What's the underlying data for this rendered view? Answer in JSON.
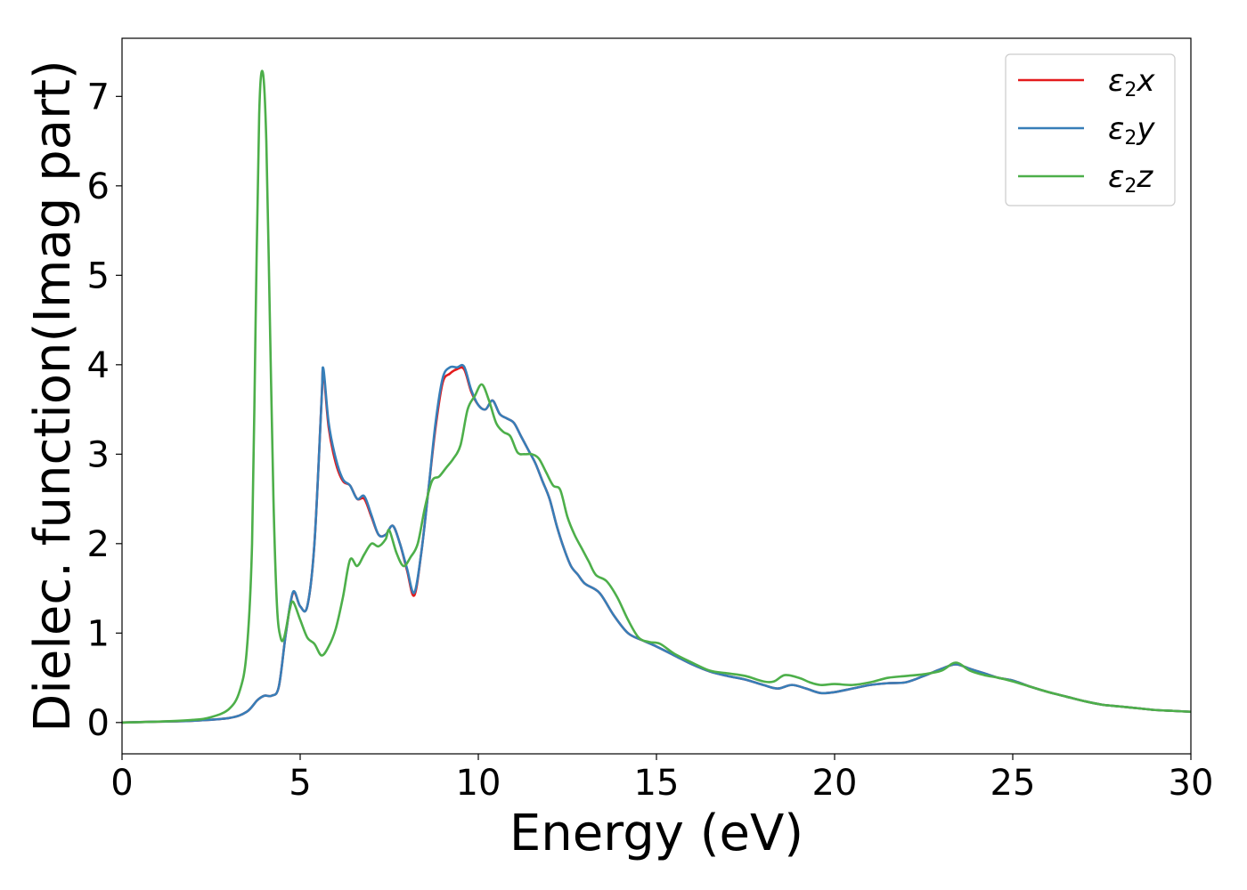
{
  "chart_data": {
    "type": "line",
    "title": "",
    "xlabel": "Energy (eV)",
    "ylabel": "Dielec. function(Imag part)",
    "xlim": [
      0,
      30
    ],
    "ylim": [
      -0.35,
      7.65
    ],
    "xticks": [
      0,
      5,
      10,
      15,
      20,
      25,
      30
    ],
    "yticks": [
      0,
      1,
      2,
      3,
      4,
      5,
      6,
      7
    ],
    "grid": false,
    "legend_position": "top-right",
    "series": [
      {
        "name": "ε2x",
        "legend": {
          "base": "ε",
          "sub": "2",
          "tail": "x"
        },
        "color": "#e41a1c",
        "points": [
          [
            0,
            0.0
          ],
          [
            1,
            0.01
          ],
          [
            2,
            0.02
          ],
          [
            3,
            0.05
          ],
          [
            3.5,
            0.12
          ],
          [
            3.8,
            0.25
          ],
          [
            4.0,
            0.3
          ],
          [
            4.2,
            0.3
          ],
          [
            4.4,
            0.4
          ],
          [
            4.6,
            1.0
          ],
          [
            4.8,
            1.45
          ],
          [
            5.0,
            1.3
          ],
          [
            5.2,
            1.3
          ],
          [
            5.4,
            2.0
          ],
          [
            5.6,
            3.6
          ],
          [
            5.65,
            3.93
          ],
          [
            5.8,
            3.3
          ],
          [
            6.0,
            2.9
          ],
          [
            6.2,
            2.7
          ],
          [
            6.4,
            2.65
          ],
          [
            6.6,
            2.5
          ],
          [
            6.8,
            2.5
          ],
          [
            7.0,
            2.3
          ],
          [
            7.2,
            2.1
          ],
          [
            7.4,
            2.1
          ],
          [
            7.6,
            2.2
          ],
          [
            7.8,
            2.0
          ],
          [
            8.0,
            1.7
          ],
          [
            8.2,
            1.42
          ],
          [
            8.4,
            1.9
          ],
          [
            8.6,
            2.6
          ],
          [
            8.8,
            3.3
          ],
          [
            9.0,
            3.8
          ],
          [
            9.2,
            3.9
          ],
          [
            9.4,
            3.95
          ],
          [
            9.6,
            3.95
          ],
          [
            9.8,
            3.7
          ],
          [
            10.0,
            3.55
          ],
          [
            10.2,
            3.5
          ],
          [
            10.4,
            3.6
          ],
          [
            10.6,
            3.45
          ],
          [
            10.8,
            3.4
          ],
          [
            11.0,
            3.35
          ],
          [
            11.2,
            3.2
          ],
          [
            11.4,
            3.05
          ],
          [
            11.6,
            2.9
          ],
          [
            11.8,
            2.7
          ],
          [
            12.0,
            2.5
          ],
          [
            12.2,
            2.2
          ],
          [
            12.4,
            1.95
          ],
          [
            12.6,
            1.75
          ],
          [
            12.8,
            1.65
          ],
          [
            13.0,
            1.55
          ],
          [
            13.4,
            1.45
          ],
          [
            13.8,
            1.2
          ],
          [
            14.2,
            1.0
          ],
          [
            14.6,
            0.92
          ],
          [
            15.0,
            0.85
          ],
          [
            15.5,
            0.75
          ],
          [
            16.0,
            0.65
          ],
          [
            16.5,
            0.57
          ],
          [
            17.0,
            0.52
          ],
          [
            17.5,
            0.48
          ],
          [
            18.0,
            0.42
          ],
          [
            18.4,
            0.38
          ],
          [
            18.8,
            0.42
          ],
          [
            19.2,
            0.38
          ],
          [
            19.6,
            0.33
          ],
          [
            20.0,
            0.34
          ],
          [
            20.5,
            0.38
          ],
          [
            21.0,
            0.42
          ],
          [
            21.5,
            0.44
          ],
          [
            22.0,
            0.45
          ],
          [
            22.5,
            0.52
          ],
          [
            23.0,
            0.6
          ],
          [
            23.4,
            0.65
          ],
          [
            23.8,
            0.6
          ],
          [
            24.2,
            0.55
          ],
          [
            24.6,
            0.5
          ],
          [
            25.0,
            0.47
          ],
          [
            25.5,
            0.4
          ],
          [
            26.0,
            0.34
          ],
          [
            26.5,
            0.29
          ],
          [
            27.0,
            0.24
          ],
          [
            27.5,
            0.2
          ],
          [
            28.0,
            0.18
          ],
          [
            28.5,
            0.16
          ],
          [
            29.0,
            0.14
          ],
          [
            29.5,
            0.13
          ],
          [
            30.0,
            0.12
          ]
        ]
      },
      {
        "name": "ε2y",
        "legend": {
          "base": "ε",
          "sub": "2",
          "tail": "y"
        },
        "color": "#377eb8",
        "points": [
          [
            0,
            0.0
          ],
          [
            1,
            0.01
          ],
          [
            2,
            0.02
          ],
          [
            3,
            0.05
          ],
          [
            3.5,
            0.12
          ],
          [
            3.8,
            0.25
          ],
          [
            4.0,
            0.3
          ],
          [
            4.2,
            0.3
          ],
          [
            4.4,
            0.4
          ],
          [
            4.6,
            1.0
          ],
          [
            4.8,
            1.46
          ],
          [
            5.0,
            1.3
          ],
          [
            5.2,
            1.3
          ],
          [
            5.4,
            2.0
          ],
          [
            5.6,
            3.6
          ],
          [
            5.65,
            3.96
          ],
          [
            5.8,
            3.35
          ],
          [
            6.0,
            2.95
          ],
          [
            6.2,
            2.72
          ],
          [
            6.4,
            2.65
          ],
          [
            6.6,
            2.5
          ],
          [
            6.8,
            2.53
          ],
          [
            7.0,
            2.32
          ],
          [
            7.2,
            2.1
          ],
          [
            7.4,
            2.1
          ],
          [
            7.6,
            2.2
          ],
          [
            7.8,
            2.0
          ],
          [
            8.0,
            1.72
          ],
          [
            8.2,
            1.45
          ],
          [
            8.4,
            1.9
          ],
          [
            8.6,
            2.6
          ],
          [
            8.8,
            3.35
          ],
          [
            9.0,
            3.85
          ],
          [
            9.2,
            3.97
          ],
          [
            9.4,
            3.97
          ],
          [
            9.6,
            3.98
          ],
          [
            9.8,
            3.72
          ],
          [
            10.0,
            3.55
          ],
          [
            10.2,
            3.5
          ],
          [
            10.4,
            3.6
          ],
          [
            10.6,
            3.45
          ],
          [
            10.8,
            3.4
          ],
          [
            11.0,
            3.35
          ],
          [
            11.2,
            3.2
          ],
          [
            11.4,
            3.05
          ],
          [
            11.6,
            2.9
          ],
          [
            11.8,
            2.7
          ],
          [
            12.0,
            2.5
          ],
          [
            12.2,
            2.2
          ],
          [
            12.4,
            1.95
          ],
          [
            12.6,
            1.75
          ],
          [
            12.8,
            1.65
          ],
          [
            13.0,
            1.55
          ],
          [
            13.4,
            1.45
          ],
          [
            13.8,
            1.2
          ],
          [
            14.2,
            1.0
          ],
          [
            14.6,
            0.92
          ],
          [
            15.0,
            0.85
          ],
          [
            15.5,
            0.75
          ],
          [
            16.0,
            0.65
          ],
          [
            16.5,
            0.57
          ],
          [
            17.0,
            0.52
          ],
          [
            17.5,
            0.48
          ],
          [
            18.0,
            0.42
          ],
          [
            18.4,
            0.38
          ],
          [
            18.8,
            0.42
          ],
          [
            19.2,
            0.38
          ],
          [
            19.6,
            0.33
          ],
          [
            20.0,
            0.34
          ],
          [
            20.5,
            0.38
          ],
          [
            21.0,
            0.42
          ],
          [
            21.5,
            0.44
          ],
          [
            22.0,
            0.45
          ],
          [
            22.5,
            0.52
          ],
          [
            23.0,
            0.6
          ],
          [
            23.4,
            0.65
          ],
          [
            23.8,
            0.6
          ],
          [
            24.2,
            0.55
          ],
          [
            24.6,
            0.5
          ],
          [
            25.0,
            0.47
          ],
          [
            25.5,
            0.4
          ],
          [
            26.0,
            0.34
          ],
          [
            26.5,
            0.29
          ],
          [
            27.0,
            0.24
          ],
          [
            27.5,
            0.2
          ],
          [
            28.0,
            0.18
          ],
          [
            28.5,
            0.16
          ],
          [
            29.0,
            0.14
          ],
          [
            29.5,
            0.13
          ],
          [
            30.0,
            0.12
          ]
        ]
      },
      {
        "name": "ε2z",
        "legend": {
          "base": "ε",
          "sub": "2",
          "tail": "z"
        },
        "color": "#4daf4a",
        "points": [
          [
            0,
            0.0
          ],
          [
            1,
            0.01
          ],
          [
            2,
            0.03
          ],
          [
            2.5,
            0.06
          ],
          [
            3.0,
            0.15
          ],
          [
            3.3,
            0.35
          ],
          [
            3.5,
            0.8
          ],
          [
            3.65,
            2.0
          ],
          [
            3.75,
            4.5
          ],
          [
            3.85,
            6.8
          ],
          [
            3.95,
            7.27
          ],
          [
            4.05,
            6.5
          ],
          [
            4.15,
            4.5
          ],
          [
            4.25,
            2.5
          ],
          [
            4.35,
            1.3
          ],
          [
            4.45,
            0.95
          ],
          [
            4.55,
            0.95
          ],
          [
            4.7,
            1.25
          ],
          [
            4.8,
            1.35
          ],
          [
            5.0,
            1.15
          ],
          [
            5.2,
            0.95
          ],
          [
            5.4,
            0.88
          ],
          [
            5.6,
            0.75
          ],
          [
            5.8,
            0.85
          ],
          [
            6.0,
            1.05
          ],
          [
            6.2,
            1.4
          ],
          [
            6.4,
            1.82
          ],
          [
            6.6,
            1.75
          ],
          [
            6.8,
            1.88
          ],
          [
            7.0,
            2.0
          ],
          [
            7.2,
            1.97
          ],
          [
            7.4,
            2.05
          ],
          [
            7.5,
            2.15
          ],
          [
            7.7,
            1.9
          ],
          [
            7.9,
            1.75
          ],
          [
            8.1,
            1.85
          ],
          [
            8.3,
            2.0
          ],
          [
            8.5,
            2.4
          ],
          [
            8.7,
            2.7
          ],
          [
            8.9,
            2.75
          ],
          [
            9.1,
            2.85
          ],
          [
            9.3,
            2.95
          ],
          [
            9.5,
            3.1
          ],
          [
            9.7,
            3.5
          ],
          [
            9.9,
            3.65
          ],
          [
            10.1,
            3.78
          ],
          [
            10.3,
            3.6
          ],
          [
            10.5,
            3.35
          ],
          [
            10.7,
            3.25
          ],
          [
            10.9,
            3.2
          ],
          [
            11.1,
            3.02
          ],
          [
            11.3,
            3.0
          ],
          [
            11.5,
            3.0
          ],
          [
            11.7,
            2.95
          ],
          [
            11.9,
            2.8
          ],
          [
            12.1,
            2.65
          ],
          [
            12.3,
            2.6
          ],
          [
            12.5,
            2.3
          ],
          [
            12.7,
            2.1
          ],
          [
            12.9,
            1.95
          ],
          [
            13.1,
            1.8
          ],
          [
            13.3,
            1.65
          ],
          [
            13.6,
            1.58
          ],
          [
            13.9,
            1.4
          ],
          [
            14.2,
            1.15
          ],
          [
            14.5,
            0.95
          ],
          [
            14.8,
            0.9
          ],
          [
            15.1,
            0.88
          ],
          [
            15.5,
            0.77
          ],
          [
            16.0,
            0.67
          ],
          [
            16.5,
            0.58
          ],
          [
            17.0,
            0.55
          ],
          [
            17.5,
            0.52
          ],
          [
            18.0,
            0.46
          ],
          [
            18.3,
            0.46
          ],
          [
            18.6,
            0.53
          ],
          [
            19.0,
            0.5
          ],
          [
            19.3,
            0.45
          ],
          [
            19.6,
            0.42
          ],
          [
            20.0,
            0.43
          ],
          [
            20.5,
            0.42
          ],
          [
            21.0,
            0.45
          ],
          [
            21.5,
            0.5
          ],
          [
            22.0,
            0.52
          ],
          [
            22.5,
            0.54
          ],
          [
            23.0,
            0.58
          ],
          [
            23.4,
            0.67
          ],
          [
            23.8,
            0.58
          ],
          [
            24.2,
            0.53
          ],
          [
            24.6,
            0.5
          ],
          [
            25.0,
            0.46
          ],
          [
            25.5,
            0.4
          ],
          [
            26.0,
            0.34
          ],
          [
            26.5,
            0.29
          ],
          [
            27.0,
            0.24
          ],
          [
            27.5,
            0.2
          ],
          [
            28.0,
            0.18
          ],
          [
            28.5,
            0.16
          ],
          [
            29.0,
            0.14
          ],
          [
            29.5,
            0.13
          ],
          [
            30.0,
            0.12
          ]
        ]
      }
    ]
  }
}
